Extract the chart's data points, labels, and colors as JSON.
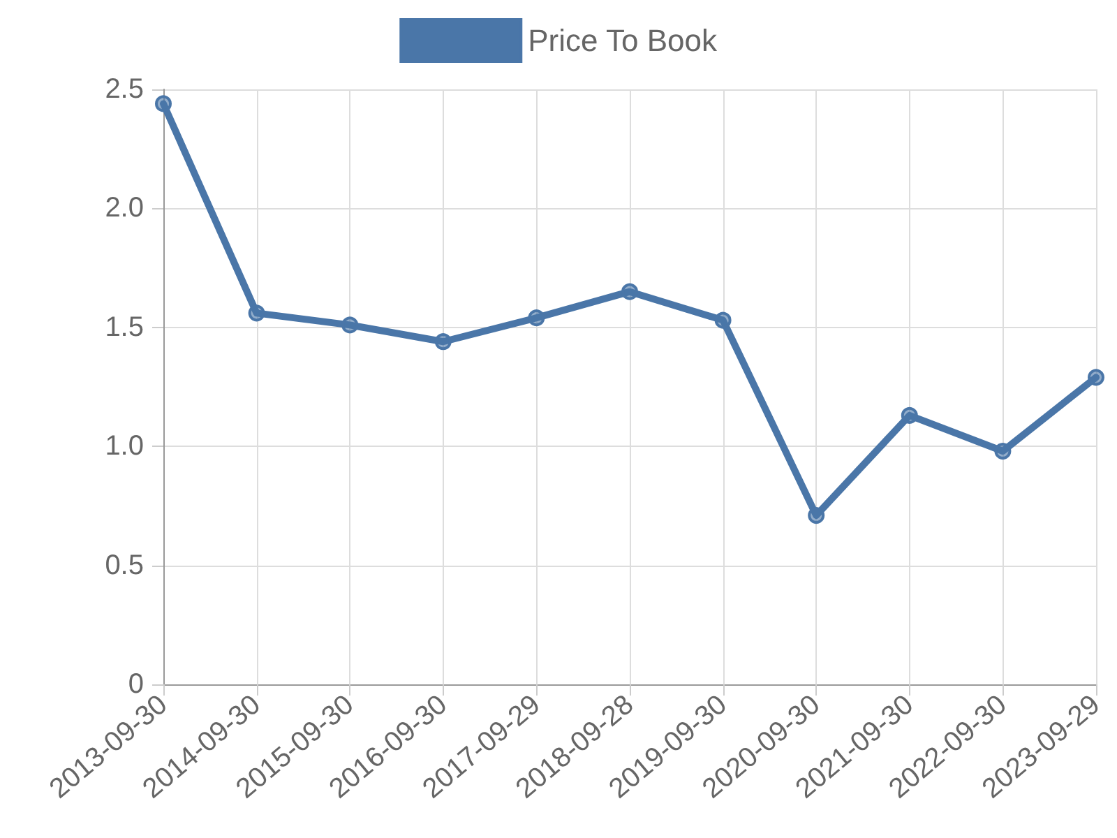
{
  "chart_data": {
    "type": "line",
    "categories": [
      "2013-09-30",
      "2014-09-30",
      "2015-09-30",
      "2016-09-30",
      "2017-09-29",
      "2018-09-28",
      "2019-09-30",
      "2020-09-30",
      "2021-09-30",
      "2022-09-30",
      "2023-09-29"
    ],
    "series": [
      {
        "name": "Price To Book",
        "color": "#4a76a8",
        "values": [
          2.44,
          1.56,
          1.51,
          1.44,
          1.54,
          1.65,
          1.53,
          0.71,
          1.13,
          0.98,
          1.29
        ]
      }
    ],
    "ylim": [
      0,
      2.5
    ],
    "yticks": [
      0,
      {
        "value": 0.5,
        "label": "0.5"
      },
      {
        "value": 1,
        "label": "1.0"
      },
      {
        "value": 1.5,
        "label": "1.5"
      },
      {
        "value": 2,
        "label": "2.0"
      },
      {
        "value": 2.5,
        "label": "2.5"
      }
    ],
    "grid": true,
    "legend": "top",
    "marker": "circle",
    "line_style": "solid"
  }
}
